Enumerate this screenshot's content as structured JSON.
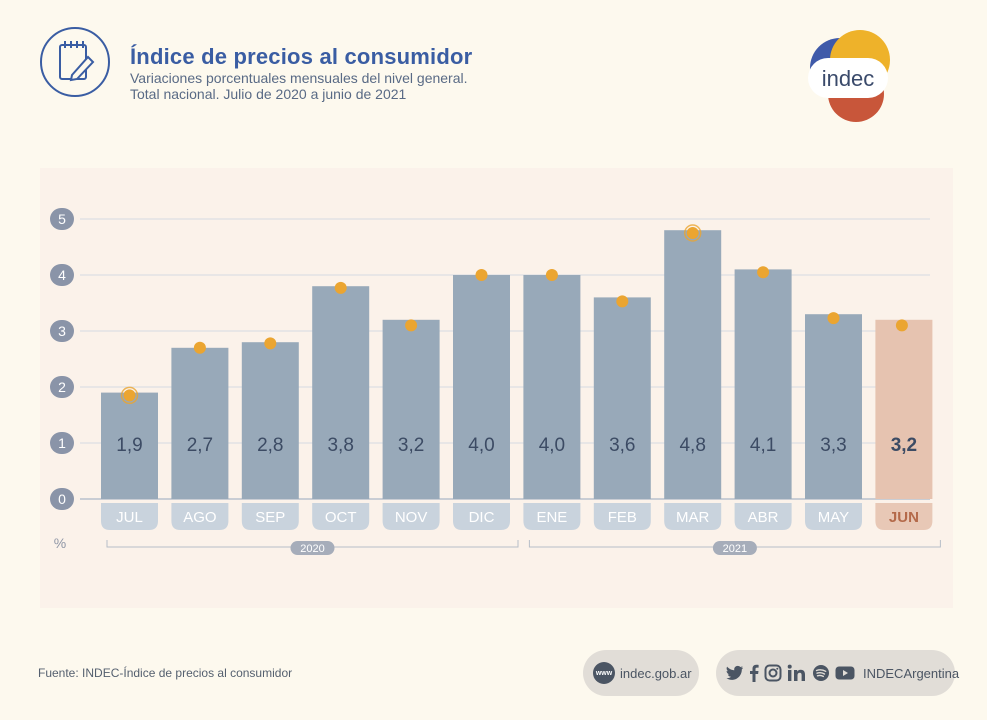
{
  "header": {
    "title": "Índice de precios al consumidor",
    "subtitle_line1": "Variaciones porcentuales mensuales del nivel general.",
    "subtitle_line2": "Total nacional. Julio de 2020 a junio de 2021",
    "icon": "notepad-pencil-icon"
  },
  "logo": {
    "text": "indec"
  },
  "colors": {
    "bar": "#98a9b9",
    "bar_highlight": "#e6c3b0",
    "marker": "#eba531",
    "title": "#3a5da3",
    "axis_badge": "#8a94a8"
  },
  "chart_data": {
    "type": "bar",
    "categories": [
      "JUL",
      "AGO",
      "SEP",
      "OCT",
      "NOV",
      "DIC",
      "ENE",
      "FEB",
      "MAR",
      "ABR",
      "MAY",
      "JUN"
    ],
    "values": [
      1.9,
      2.7,
      2.8,
      3.8,
      3.2,
      4.0,
      4.0,
      3.6,
      4.8,
      4.1,
      3.3,
      3.2
    ],
    "labels": [
      "1,9",
      "2,7",
      "2,8",
      "3,8",
      "3,2",
      "4,0",
      "4,0",
      "3,6",
      "4,8",
      "4,1",
      "3,3",
      "3,2"
    ],
    "markers": [
      1.85,
      2.7,
      2.78,
      3.77,
      3.1,
      4.0,
      4.0,
      3.53,
      4.75,
      4.05,
      3.23,
      3.1
    ],
    "highlight_index": 11,
    "yticks": [
      "0",
      "1",
      "2",
      "3",
      "4",
      "5"
    ],
    "ylim": [
      0,
      5
    ],
    "ylabel": "%",
    "year_groups": [
      {
        "label": "2020",
        "from": 0,
        "to": 5
      },
      {
        "label": "2021",
        "from": 6,
        "to": 11
      }
    ],
    "grid": true
  },
  "footer": {
    "source": "Fuente: INDEC-Índice de precios al consumidor",
    "web_badge": "www",
    "website": "indec.gob.ar",
    "social_handle": "INDECArgentina",
    "social_icons": [
      "twitter-icon",
      "facebook-icon",
      "instagram-icon",
      "linkedin-icon",
      "spotify-icon",
      "youtube-icon"
    ]
  }
}
